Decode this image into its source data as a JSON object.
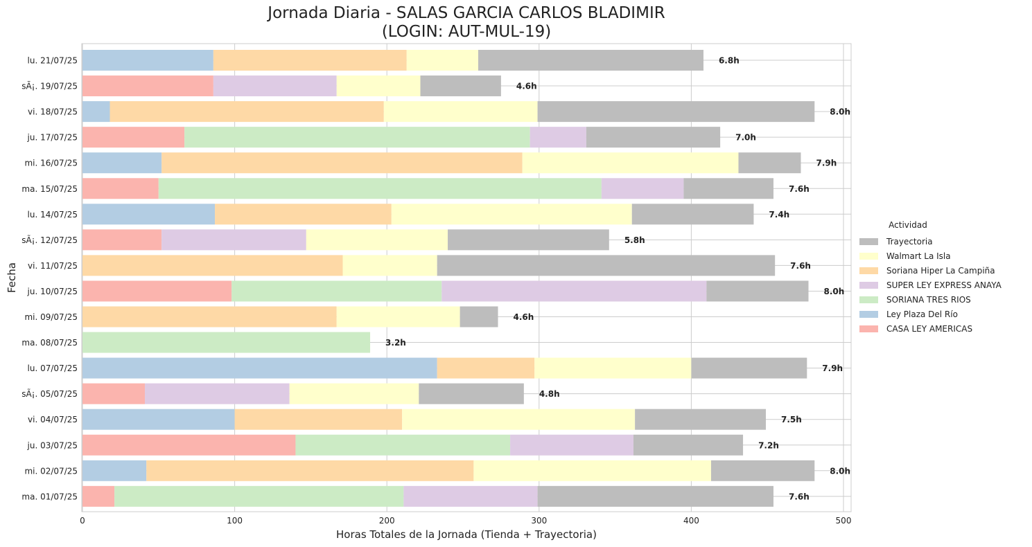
{
  "chart_data": {
    "type": "bar",
    "orientation": "horizontal",
    "stacked": true,
    "title_line1": "Jornada Diaria - SALAS GARCIA CARLOS BLADIMIR",
    "title_line2": "(LOGIN: AUT-MUL-19)",
    "xlabel": "Horas Totales de la Jornada (Tienda + Trayectoria)",
    "ylabel": "Fecha",
    "xlim": [
      0,
      505
    ],
    "xticks": [
      0,
      100,
      200,
      300,
      400,
      500
    ],
    "grid": true,
    "legend": {
      "title": "Actividad",
      "placement": "center-right",
      "entries": [
        "Trayectoria",
        "Walmart La Isla",
        "Soriana Hiper La Campiña",
        "SUPER LEY EXPRESS ANAYA",
        "SORIANA TRES RIOS",
        "Ley Plaza Del Río",
        "CASA LEY AMERICAS"
      ]
    },
    "categories": [
      "lu. 21/07/25",
      "sÃ¡. 19/07/25",
      "vi. 18/07/25",
      "ju. 17/07/25",
      "mi. 16/07/25",
      "ma. 15/07/25",
      "lu. 14/07/25",
      "sÃ¡. 12/07/25",
      "vi. 11/07/25",
      "ju. 10/07/25",
      "mi. 09/07/25",
      "ma. 08/07/25",
      "lu. 07/07/25",
      "sÃ¡. 05/07/25",
      "vi. 04/07/25",
      "ju. 03/07/25",
      "mi. 02/07/25",
      "ma. 01/07/25"
    ],
    "series": [
      {
        "name": "CASA LEY AMERICAS",
        "color": "#fbb4ae",
        "values": [
          0,
          86,
          0,
          67,
          0,
          50,
          0,
          52,
          0,
          98,
          0,
          0,
          0,
          41,
          0,
          140,
          0,
          21
        ]
      },
      {
        "name": "Ley Plaza Del Río",
        "color": "#b3cde3",
        "values": [
          86,
          0,
          18,
          0,
          52,
          0,
          87,
          0,
          0,
          0,
          0,
          0,
          233,
          0,
          100,
          0,
          42,
          0
        ]
      },
      {
        "name": "SORIANA TRES RIOS",
        "color": "#ccebc5",
        "values": [
          0,
          0,
          0,
          227,
          0,
          291,
          0,
          0,
          0,
          138,
          0,
          189,
          0,
          0,
          0,
          141,
          0,
          190
        ]
      },
      {
        "name": "SUPER LEY EXPRESS ANAYA",
        "color": "#decbe4",
        "values": [
          0,
          81,
          0,
          37,
          0,
          54,
          0,
          95,
          0,
          174,
          0,
          0,
          0,
          95,
          0,
          81,
          0,
          88
        ]
      },
      {
        "name": "Soriana Hiper La Campiña",
        "color": "#fed9a6",
        "values": [
          127,
          0,
          180,
          0,
          237,
          0,
          116,
          0,
          171,
          0,
          167,
          0,
          64,
          0,
          110,
          0,
          215,
          0
        ]
      },
      {
        "name": "Walmart La Isla",
        "color": "#ffffcc",
        "values": [
          47,
          55,
          101,
          0,
          142,
          0,
          158,
          93,
          62,
          0,
          81,
          0,
          103,
          85,
          153,
          0,
          156,
          0
        ]
      },
      {
        "name": "Trayectoria",
        "color": "#bdbdbd",
        "values": [
          148,
          53,
          182,
          88,
          41,
          59,
          80,
          106,
          222,
          67,
          25,
          0,
          76,
          69,
          86,
          72,
          68,
          155
        ]
      }
    ],
    "totals": [
      408,
      275,
      481,
      419,
      472,
      454,
      441,
      346,
      455,
      477,
      273,
      189,
      476,
      290,
      449,
      434,
      481,
      454
    ],
    "bar_labels": [
      "6.8h",
      "4.6h",
      "8.0h",
      "7.0h",
      "7.9h",
      "7.6h",
      "7.4h",
      "5.8h",
      "7.6h",
      "8.0h",
      "4.6h",
      "3.2h",
      "7.9h",
      "4.8h",
      "7.5h",
      "7.2h",
      "8.0h",
      "7.6h"
    ]
  }
}
